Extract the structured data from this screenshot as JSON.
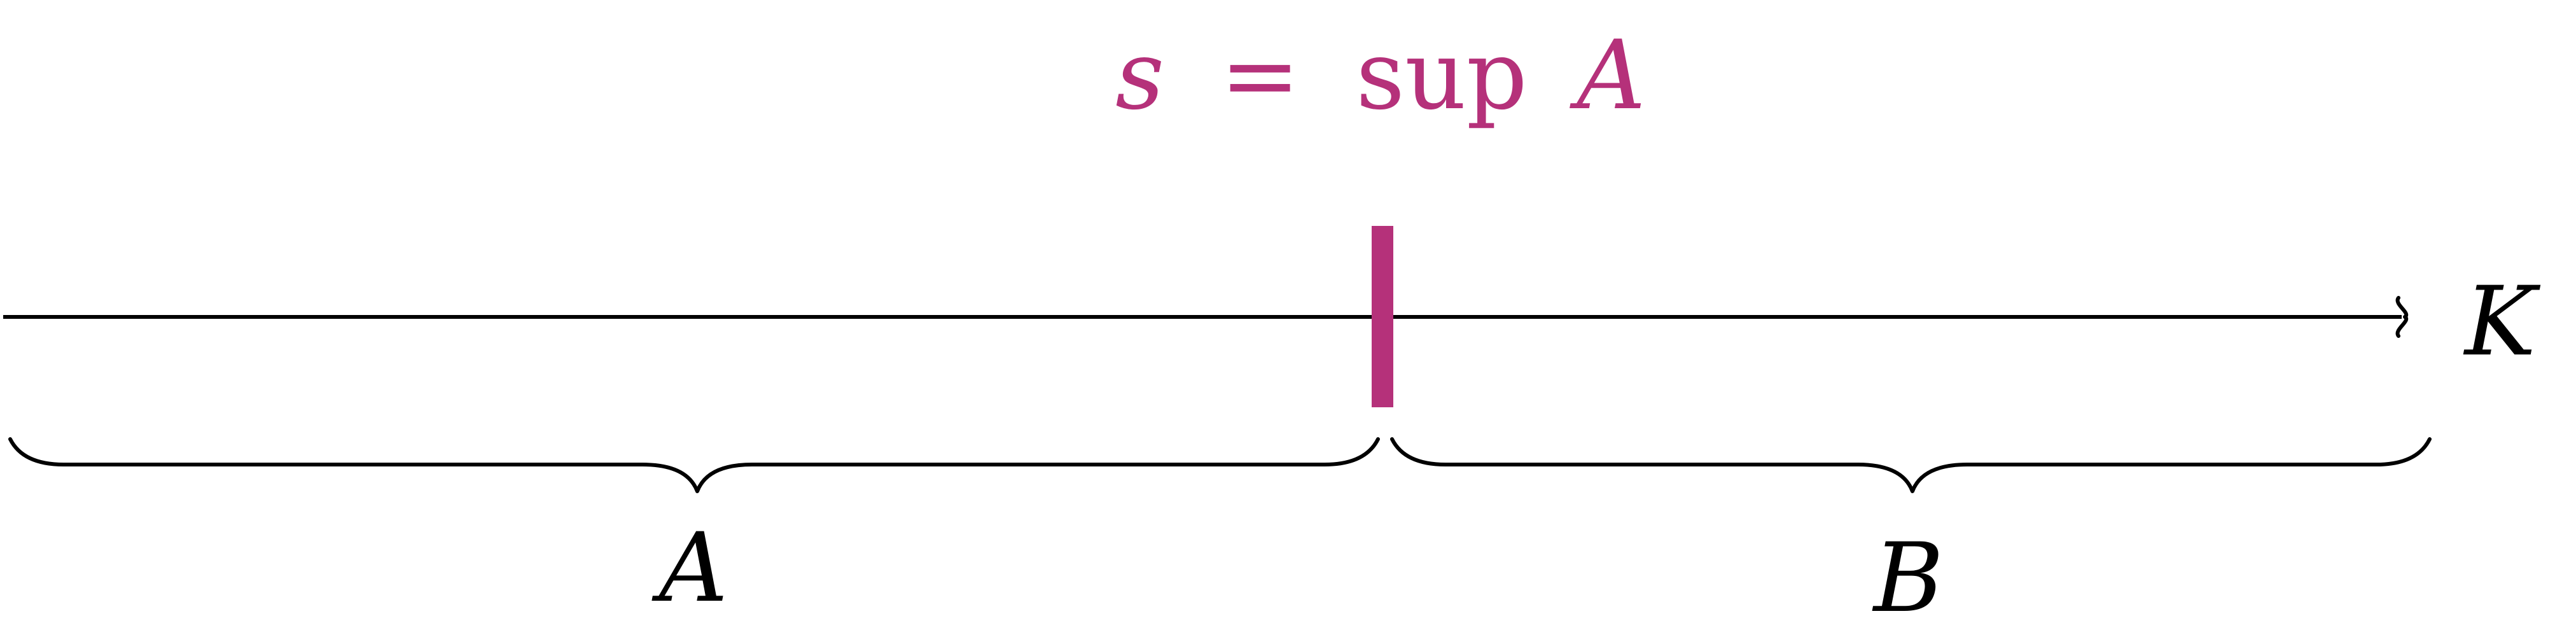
{
  "colors": {
    "accent": "#b5317a",
    "ink": "#000000"
  },
  "supremum_label": {
    "variable": "s",
    "equals": "=",
    "operator": "sup",
    "set": "A"
  },
  "axis_label": "K",
  "set_a_label": "A",
  "set_b_label": "B"
}
